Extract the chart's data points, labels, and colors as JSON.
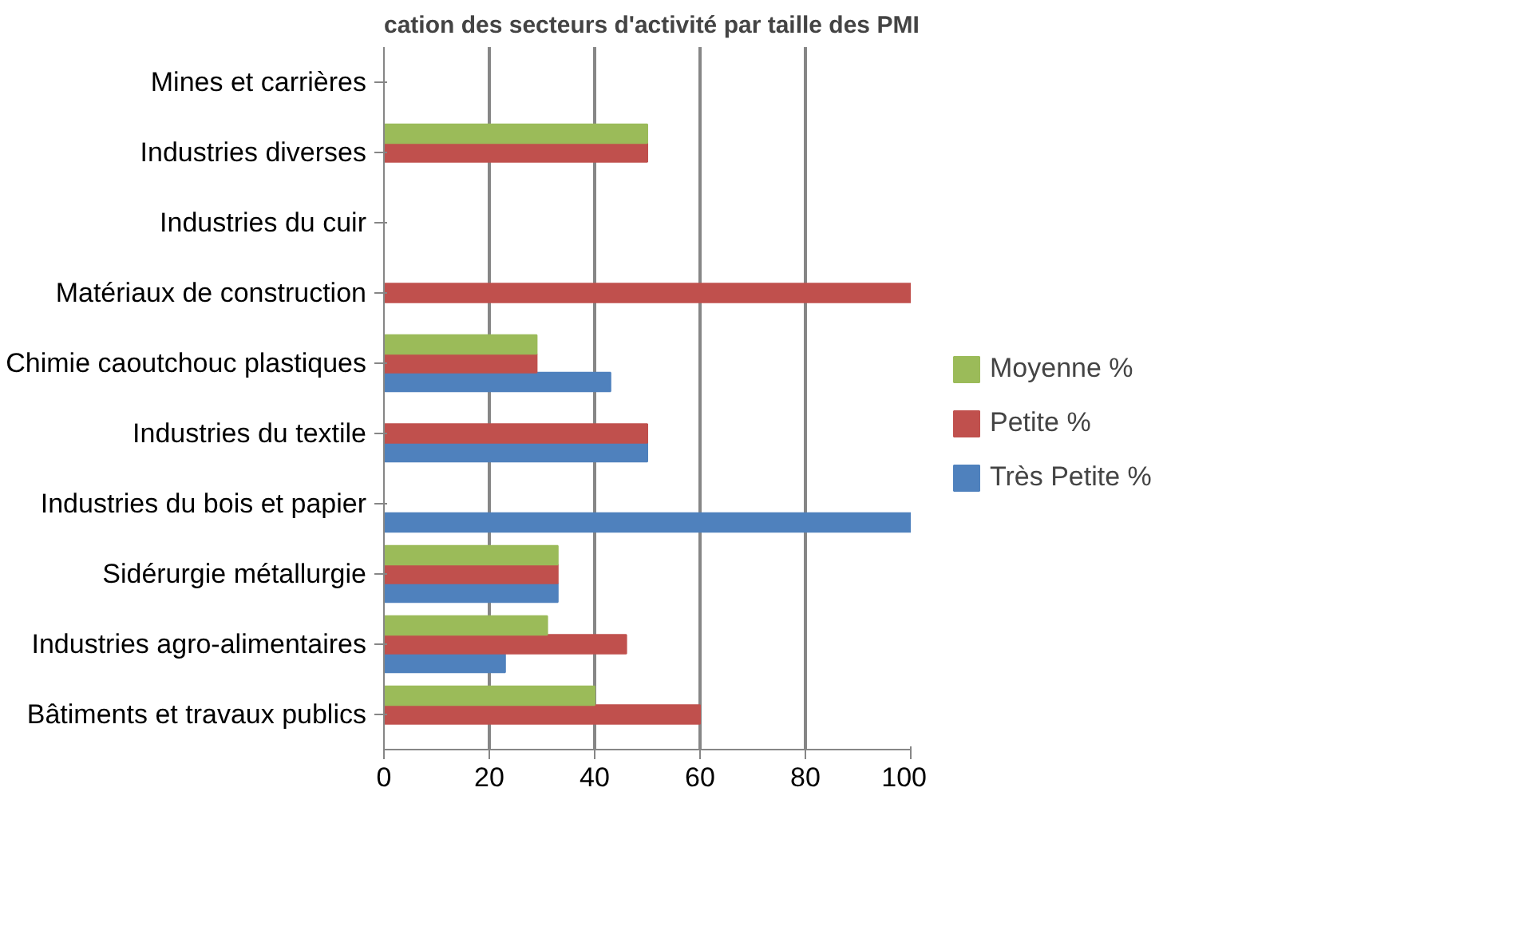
{
  "chart_data": {
    "type": "bar",
    "orientation": "horizontal",
    "title": "cation des secteurs d'activité par taille des PMI",
    "categories": [
      "Mines et carrières",
      "Industries diverses",
      "Industries du cuir",
      "Matériaux de construction",
      "Chimie caoutchouc plastiques",
      "Industries du textile",
      "Industries du bois et papier",
      "Sidérurgie métallurgie",
      "Industries agro-alimentaires",
      "Bâtiments et travaux publics"
    ],
    "series": [
      {
        "name": "Très Petite %",
        "color": "#4f81bd",
        "values": [
          0,
          0,
          0,
          0,
          43,
          50,
          100,
          33,
          23,
          0
        ]
      },
      {
        "name": "Petite %",
        "color": "#c0504d",
        "values": [
          0,
          50,
          0,
          100,
          29,
          50,
          0,
          33,
          46,
          60
        ]
      },
      {
        "name": "Moyenne %",
        "color": "#9bbb59",
        "values": [
          0,
          50,
          0,
          0,
          29,
          0,
          0,
          33,
          31,
          40
        ]
      }
    ],
    "xlim": [
      0,
      100
    ],
    "xticks": [
      0,
      20,
      40,
      60,
      80,
      100
    ],
    "grid": "x",
    "legend": "right"
  }
}
